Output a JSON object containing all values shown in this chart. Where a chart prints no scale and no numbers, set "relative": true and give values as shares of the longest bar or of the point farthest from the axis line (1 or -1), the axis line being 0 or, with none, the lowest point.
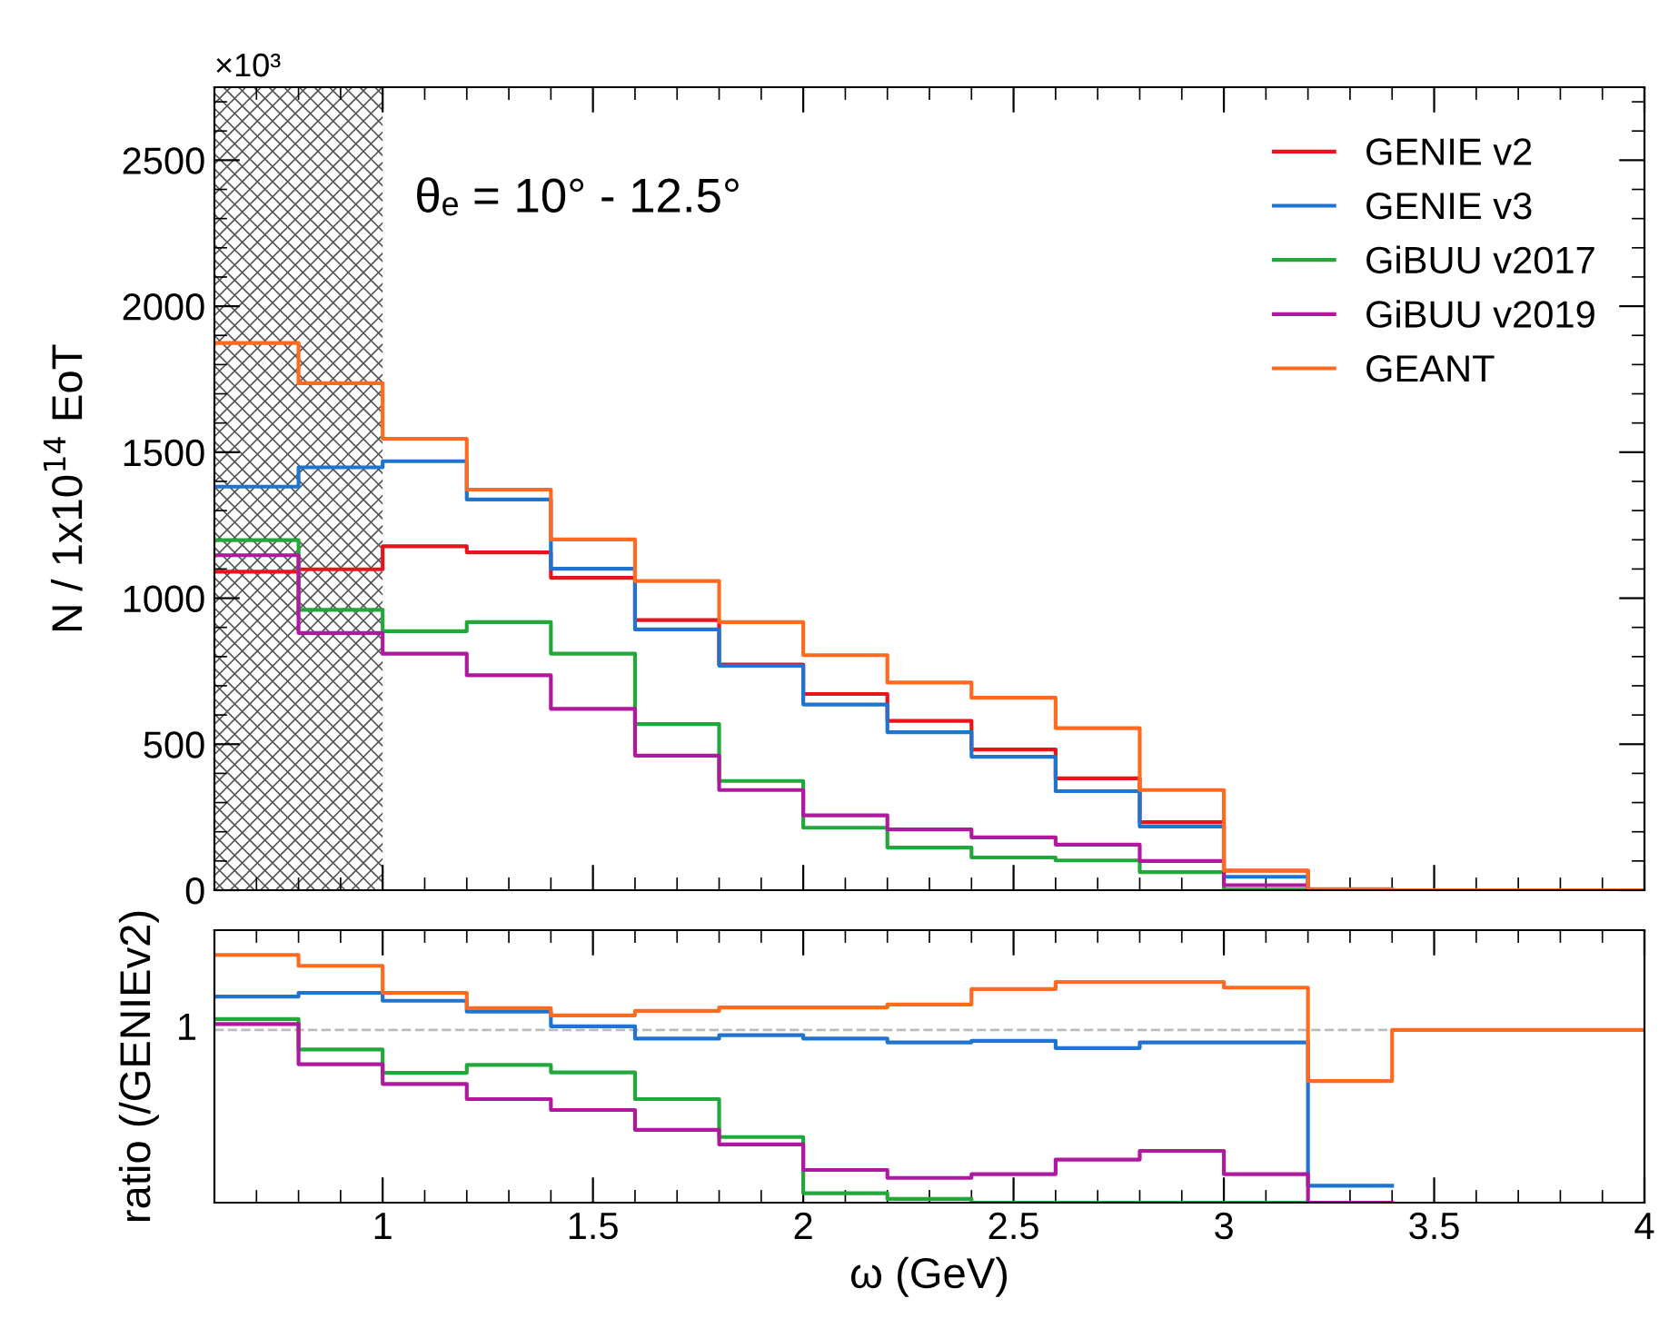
{
  "chart_data": [
    {
      "type": "histogram",
      "bins": [
        0.6,
        0.8,
        1.0,
        1.2,
        1.4,
        1.6,
        1.8,
        2.0,
        2.2,
        2.4,
        2.6,
        2.8,
        3.0,
        3.2,
        3.4,
        3.6,
        3.8,
        4.0
      ],
      "xlim": [
        0.6,
        4
      ],
      "xticks": [
        1,
        1.5,
        2,
        2.5,
        3,
        3.5,
        4
      ],
      "ylim": [
        0,
        2750
      ],
      "yticks": [
        0,
        500,
        1000,
        1500,
        2000,
        2500
      ],
      "tick_labels": "y",
      "ylabel": "N / 1x10$^{14}$ EoT",
      "annotations": [
        "×10³",
        "θₑ = 10° - 12.5°"
      ],
      "legend": "top right",
      "grid": false,
      "bands": [
        {
          "axis": "x",
          "from": 0.6,
          "to": 1.0,
          "color": "#555555"
        }
      ],
      "series": [
        {
          "name": "GENIE v2",
          "color": "#e8141c",
          "values": [
            1091,
            1099,
            1178,
            1157,
            1070,
            925,
            773,
            672,
            580,
            482,
            383,
            233,
            67,
            0,
            0,
            0,
            0
          ]
        },
        {
          "name": "GENIE v3",
          "color": "#1f74d0",
          "values": [
            1382,
            1448,
            1469,
            1338,
            1101,
            893,
            769,
            636,
            541,
            457,
            339,
            218,
            46,
            0,
            0,
            0,
            0
          ]
        },
        {
          "name": "GiBUU v2017",
          "color": "#22a83a",
          "values": [
            1199,
            960,
            887,
            918,
            810,
            569,
            374,
            214,
            146,
            112,
            102,
            62,
            2,
            0,
            0,
            0,
            0
          ]
        },
        {
          "name": "GiBUU v2019",
          "color": "#b0189f",
          "values": [
            1147,
            881,
            810,
            736,
            621,
            461,
            343,
            256,
            208,
            181,
            156,
            100,
            17,
            2,
            0,
            0,
            0
          ]
        },
        {
          "name": "GEANT",
          "color": "#ff6a1f",
          "values": [
            1874,
            1736,
            1546,
            1372,
            1201,
            1059,
            918,
            805,
            711,
            659,
            555,
            343,
            67,
            4,
            0,
            0,
            0
          ]
        }
      ]
    },
    {
      "type": "step",
      "x": [
        0.6,
        0.8,
        1.0,
        1.2,
        1.4,
        1.6,
        1.8,
        2.0,
        2.2,
        2.4,
        2.6,
        2.8,
        3.0,
        3.2,
        3.4,
        3.6,
        3.8,
        4.0
      ],
      "xlim": [
        0.6,
        4
      ],
      "xticks": [
        1,
        1.5,
        2,
        2.5,
        3,
        3.5,
        4
      ],
      "relative": true,
      "xlabel": "ω (GeV)",
      "ylabel": "ratio (/GENIEv2)",
      "grid": false,
      "ref_lines": [
        {
          "axis": "y",
          "value": 0.697,
          "label": "1",
          "color": "#bbbbbb",
          "line_style": "dashed"
        }
      ],
      "series": [
        {
          "color": "#1f74d0",
          "values": [
            0.832,
            0.847,
            0.815,
            0.771,
            0.712,
            0.662,
            0.676,
            0.662,
            0.647,
            0.653,
            0.624,
            0.647,
            0.647,
            0.068,
            0.068,
            null,
            null,
            null
          ]
        },
        {
          "color": "#22a83a",
          "values": [
            0.741,
            0.618,
            0.524,
            0.556,
            0.526,
            0.418,
            0.265,
            0.038,
            0.015,
            0,
            0,
            0,
            0,
            0,
            null,
            null,
            null,
            null
          ]
        },
        {
          "color": "#b0189f",
          "values": [
            0.721,
            0.559,
            0.479,
            0.418,
            0.374,
            0.294,
            0.235,
            0.132,
            0.1,
            0.115,
            0.174,
            0.209,
            0.115,
            0,
            0,
            null,
            null,
            null
          ]
        },
        {
          "color": "#ff6a1f",
          "values": [
            1.0,
            0.956,
            0.847,
            0.785,
            0.756,
            0.774,
            0.788,
            0.788,
            0.8,
            0.862,
            0.891,
            0.891,
            0.868,
            0.491,
            0.697,
            0.697,
            0.697,
            0.697
          ]
        }
      ]
    }
  ]
}
